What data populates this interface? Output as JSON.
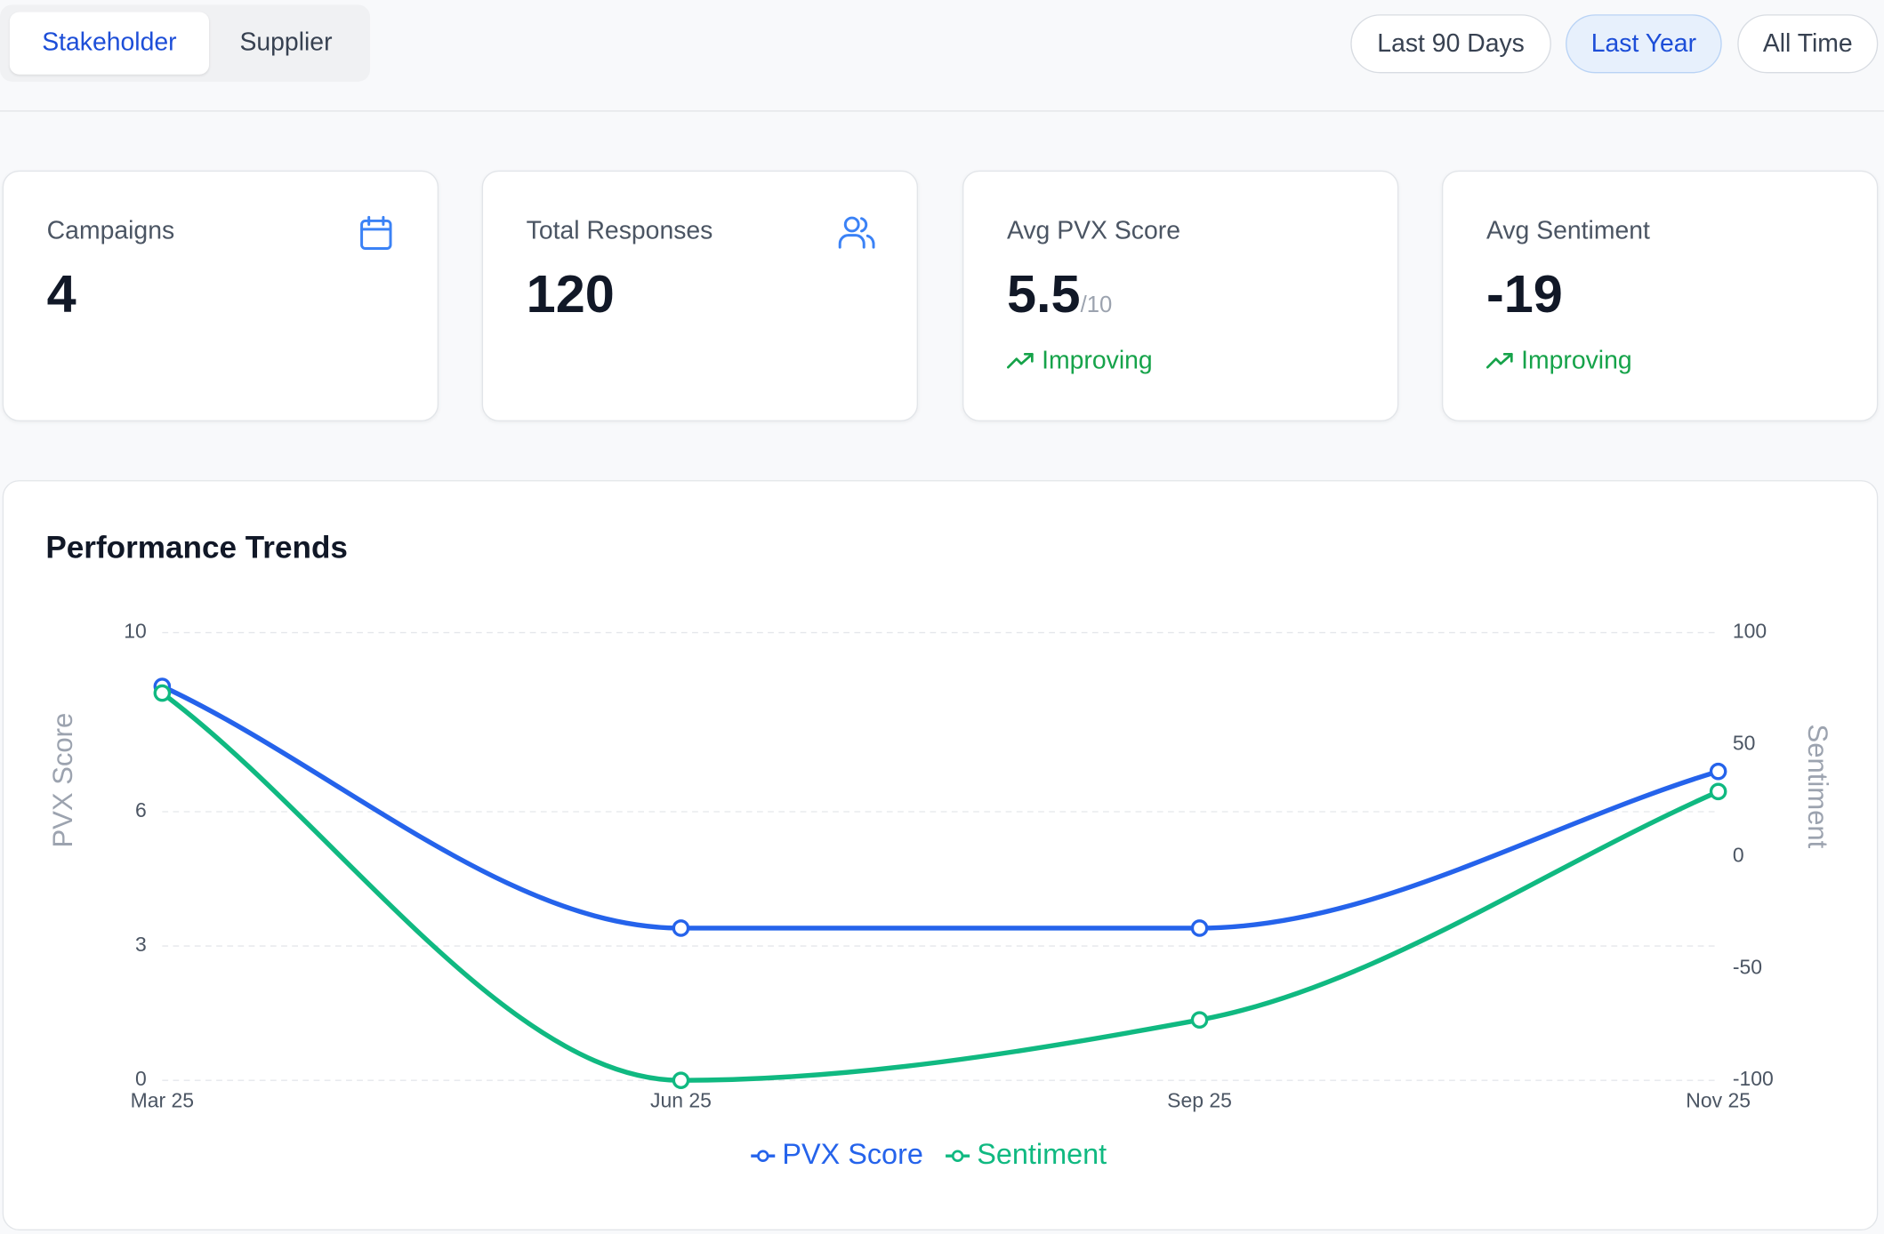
{
  "tabs": [
    "Stakeholder",
    "Supplier"
  ],
  "filters": [
    "Last 90 Days",
    "Last Year",
    "All Time"
  ],
  "cards": [
    {
      "label": "Campaigns",
      "value": "4"
    },
    {
      "label": "Total Responses",
      "value": "120"
    },
    {
      "label": "Avg PVX Score",
      "value": "5.5",
      "suffix": "/10",
      "trend": "Improving"
    },
    {
      "label": "Avg Sentiment",
      "value": "-19",
      "trend": "Improving"
    }
  ],
  "chart_data": {
    "type": "line",
    "title": "Performance Trends",
    "categories": [
      "Mar 25",
      "Jun 25",
      "Sep 25",
      "Nov 25"
    ],
    "series": [
      {
        "name": "PVX Score",
        "color": "#2563eb",
        "values": [
          8.8,
          3.4,
          3.4,
          6.9
        ]
      },
      {
        "name": "Sentiment",
        "color": "#10b981",
        "axis": "y2",
        "values": [
          73,
          -100,
          -73,
          29
        ]
      }
    ],
    "y_label": "PVX Score",
    "y2_label": "Sentiment",
    "ylim": [
      0,
      10
    ],
    "yticks": [
      0,
      3,
      6,
      10
    ],
    "y2lim": [
      -100,
      100
    ],
    "y2ticks": [
      -100,
      -50,
      0,
      50,
      100
    ],
    "grid": true
  }
}
